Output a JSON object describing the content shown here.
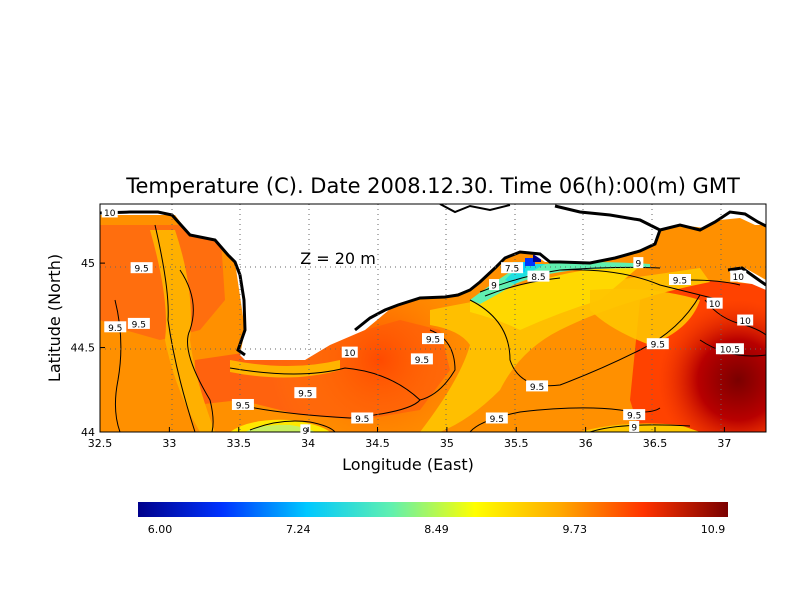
{
  "map": {
    "title": "Temperature (C). Date 2008.12.30. Time 06(h):00(m) GMT",
    "depth_label": "Z = 20 m",
    "xlabel": "Longitude (East)",
    "ylabel": "Latitude (North)",
    "x_ticks": [
      "32.5",
      "33",
      "33.5",
      "34",
      "34.5",
      "35",
      "35.5",
      "36",
      "36.5",
      "37"
    ],
    "y_ticks": [
      "44",
      "44.5",
      "45"
    ],
    "xlim": [
      32.5,
      37.3
    ],
    "ylim": [
      44.0,
      45.35
    ],
    "grid": "dotted",
    "contour_labels": [
      {
        "text": "10",
        "lon": 32.57,
        "lat": 45.3
      },
      {
        "text": "9.5",
        "lon": 32.8,
        "lat": 44.97
      },
      {
        "text": "9.5",
        "lon": 32.61,
        "lat": 44.62
      },
      {
        "text": "9.5",
        "lon": 32.78,
        "lat": 44.64
      },
      {
        "text": "10",
        "lon": 34.3,
        "lat": 44.47
      },
      {
        "text": "9.5",
        "lon": 34.9,
        "lat": 44.55
      },
      {
        "text": "9.5",
        "lon": 34.82,
        "lat": 44.43
      },
      {
        "text": "9.5",
        "lon": 33.98,
        "lat": 44.23
      },
      {
        "text": "9.5",
        "lon": 33.53,
        "lat": 44.16
      },
      {
        "text": "9.5",
        "lon": 34.39,
        "lat": 44.08
      },
      {
        "text": "9",
        "lon": 33.98,
        "lat": 44.01
      },
      {
        "text": "9.5",
        "lon": 35.65,
        "lat": 44.27
      },
      {
        "text": "9.5",
        "lon": 35.36,
        "lat": 44.08
      },
      {
        "text": "9.5",
        "lon": 36.35,
        "lat": 44.1
      },
      {
        "text": "9",
        "lon": 36.35,
        "lat": 44.03
      },
      {
        "text": "9.5",
        "lon": 36.52,
        "lat": 44.52
      },
      {
        "text": "10.5",
        "lon": 37.04,
        "lat": 44.49
      },
      {
        "text": "10",
        "lon": 37.15,
        "lat": 44.66
      },
      {
        "text": "10",
        "lon": 36.93,
        "lat": 44.76
      },
      {
        "text": "9.5",
        "lon": 36.68,
        "lat": 44.9
      },
      {
        "text": "10",
        "lon": 37.1,
        "lat": 44.92
      },
      {
        "text": "9",
        "lon": 36.38,
        "lat": 45.0
      },
      {
        "text": "8.5",
        "lon": 35.66,
        "lat": 44.92
      },
      {
        "text": "7.5",
        "lon": 35.47,
        "lat": 44.97
      },
      {
        "text": "9",
        "lon": 35.34,
        "lat": 44.87
      }
    ],
    "colorbar": {
      "ticks": [
        "6.00",
        "7.24",
        "8.49",
        "9.73",
        "10.9"
      ],
      "min": 6.0,
      "max": 10.9,
      "colors": [
        "#00008b",
        "#0033ff",
        "#00c8ff",
        "#60f0b0",
        "#ffff00",
        "#ffaa00",
        "#ff3300",
        "#7a0000"
      ]
    }
  }
}
